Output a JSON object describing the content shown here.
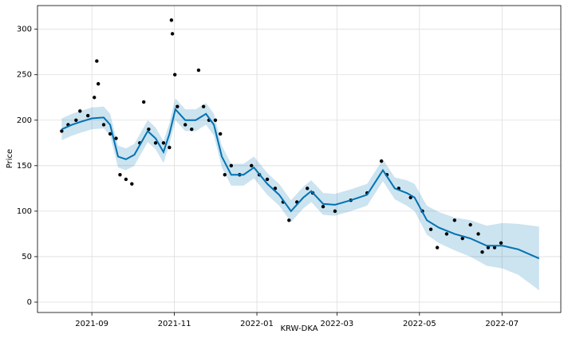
{
  "chart_data": {
    "type": "line",
    "x_label": "KRW-DKA",
    "y_label": "Price",
    "x": [
      2021.605,
      2021.626,
      2021.642,
      2021.666,
      2021.69,
      2021.703,
      2021.719,
      2021.735,
      2021.752,
      2021.779,
      2021.795,
      2021.811,
      2021.823,
      2021.835,
      2021.855,
      2021.876,
      2021.897,
      2021.913,
      2021.929,
      2021.948,
      2021.973,
      2021.994,
      2022.021,
      2022.045,
      2022.069,
      2022.094,
      2022.11,
      2022.134,
      2022.158,
      2022.19,
      2022.223,
      2022.255,
      2022.279,
      2022.303,
      2022.319,
      2022.344,
      2022.368,
      2022.4,
      2022.432,
      2022.465,
      2022.497,
      2022.529,
      2022.571
    ],
    "series": [
      {
        "color": "#0072b2",
        "values": [
          190,
          195,
          198,
          202,
          203,
          195,
          160,
          157,
          162,
          188,
          180,
          165,
          185,
          212,
          200,
          200,
          207,
          195,
          160,
          140,
          140,
          148,
          130,
          118,
          100,
          115,
          122,
          108,
          107,
          112,
          118,
          145,
          125,
          120,
          115,
          90,
          82,
          75,
          70,
          62,
          62,
          58,
          48
        ],
        "upper": [
          202,
          207,
          210,
          214,
          215,
          207,
          172,
          169,
          174,
          200,
          192,
          177,
          197,
          224,
          212,
          212,
          219,
          207,
          172,
          152,
          152,
          160,
          142,
          130,
          112,
          127,
          134,
          120,
          119,
          124,
          130,
          157,
          137,
          134,
          130,
          106,
          99,
          93,
          90,
          84,
          87,
          86,
          83
        ],
        "lower": [
          178,
          183,
          186,
          190,
          191,
          183,
          148,
          145,
          150,
          176,
          168,
          153,
          173,
          200,
          188,
          188,
          195,
          183,
          148,
          128,
          128,
          136,
          118,
          106,
          88,
          103,
          110,
          96,
          95,
          100,
          106,
          133,
          113,
          106,
          100,
          74,
          65,
          57,
          50,
          40,
          37,
          30,
          13
        ]
      }
    ],
    "points": {
      "color": "#000000",
      "x": [
        2021.605,
        2021.618,
        2021.634,
        2021.642,
        2021.658,
        2021.671,
        2021.676,
        2021.679,
        2021.69,
        2021.703,
        2021.715,
        2021.723,
        2021.735,
        2021.747,
        2021.763,
        2021.771,
        2021.781,
        2021.795,
        2021.811,
        2021.823,
        2021.827,
        2021.829,
        2021.834,
        2021.839,
        2021.855,
        2021.868,
        2021.882,
        2021.892,
        2021.903,
        2021.916,
        2021.926,
        2021.935,
        2021.948,
        2021.965,
        2021.989,
        2022.005,
        2022.021,
        2022.037,
        2022.053,
        2022.065,
        2022.081,
        2022.102,
        2022.113,
        2022.134,
        2022.158,
        2022.19,
        2022.223,
        2022.252,
        2022.263,
        2022.287,
        2022.311,
        2022.335,
        2022.352,
        2022.365,
        2022.384,
        2022.4,
        2022.416,
        2022.432,
        2022.448,
        2022.456,
        2022.468,
        2022.481,
        2022.494
      ],
      "values": [
        188,
        195,
        200,
        210,
        205,
        225,
        265,
        240,
        195,
        185,
        180,
        140,
        135,
        130,
        175,
        220,
        190,
        175,
        175,
        170,
        310,
        295,
        250,
        215,
        195,
        190,
        255,
        215,
        200,
        200,
        185,
        140,
        150,
        140,
        150,
        140,
        135,
        125,
        110,
        90,
        110,
        125,
        120,
        105,
        100,
        112,
        120,
        155,
        140,
        125,
        115,
        100,
        80,
        60,
        75,
        90,
        70,
        85,
        75,
        55,
        60,
        60,
        65
      ]
    },
    "xlim": [
      2021.556,
      2022.615
    ],
    "xticks": [
      {
        "value": 2021.666,
        "label": "2021-09"
      },
      {
        "value": 2021.833,
        "label": "2021-11"
      },
      {
        "value": 2022.0,
        "label": "2022-01"
      },
      {
        "value": 2022.162,
        "label": "2022-03"
      },
      {
        "value": 2022.329,
        "label": "2022-05"
      },
      {
        "value": 2022.496,
        "label": "2022-07"
      }
    ],
    "ylim": [
      -11.4,
      326
    ],
    "yticks": [
      0,
      50,
      100,
      150,
      200,
      250,
      300
    ],
    "grid": true
  }
}
